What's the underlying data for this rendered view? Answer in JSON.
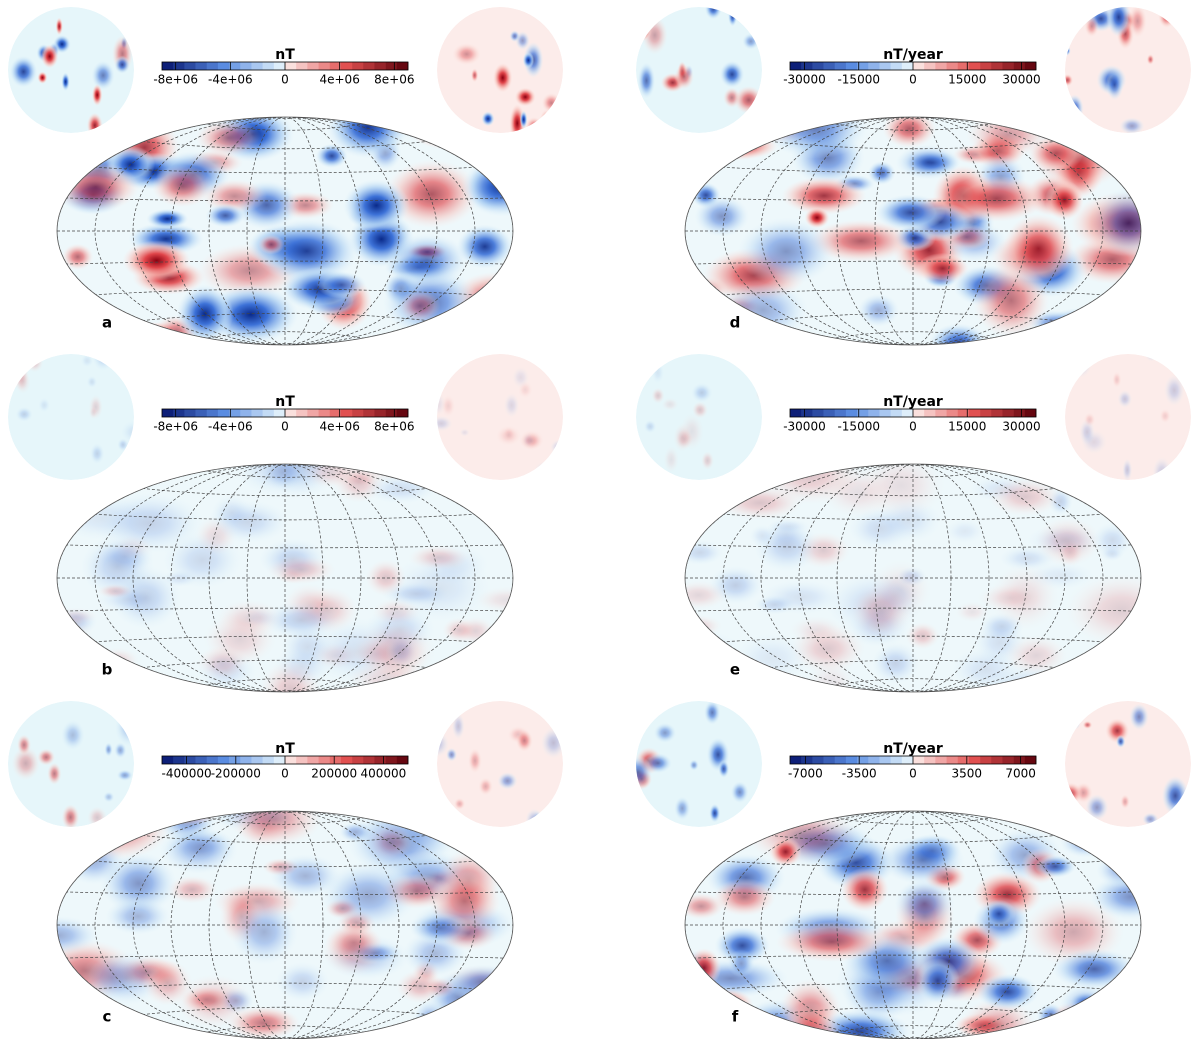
{
  "panels": [
    {
      "label": "a",
      "colorbar": {
        "title": "nT",
        "lim": [
          -9000000,
          9000000
        ],
        "ticks": [
          {
            "value": -8000000,
            "label": "-8e+06"
          },
          {
            "value": -4000000,
            "label": "-4e+06"
          },
          0,
          {
            "value": 4000000,
            "label": "4e+06"
          },
          {
            "value": 8000000,
            "label": "8e+06"
          }
        ]
      }
    },
    {
      "label": "b",
      "colorbar": {
        "title": "nT",
        "lim": [
          -9000000,
          9000000
        ],
        "ticks": [
          {
            "value": -8000000,
            "label": "-8e+06"
          },
          {
            "value": -4000000,
            "label": "-4e+06"
          },
          0,
          {
            "value": 4000000,
            "label": "4e+06"
          },
          {
            "value": 8000000,
            "label": "8e+06"
          }
        ]
      }
    },
    {
      "label": "c",
      "colorbar": {
        "title": "nT",
        "lim": [
          -500000,
          500000
        ],
        "ticks": [
          -400000,
          -200000,
          0,
          200000,
          400000
        ]
      }
    },
    {
      "label": "d",
      "colorbar": {
        "title": "nT/year",
        "lim": [
          -34000,
          34000
        ],
        "ticks": [
          -30000,
          -15000,
          0,
          15000,
          30000
        ]
      }
    },
    {
      "label": "e",
      "colorbar": {
        "title": "nT/year",
        "lim": [
          -34000,
          34000
        ],
        "ticks": [
          -30000,
          -15000,
          0,
          15000,
          30000
        ]
      }
    },
    {
      "label": "f",
      "colorbar": {
        "title": "nT/year",
        "lim": [
          -8000,
          8000
        ],
        "ticks": [
          -7000,
          -3500,
          0,
          3500,
          7000
        ]
      }
    }
  ]
}
